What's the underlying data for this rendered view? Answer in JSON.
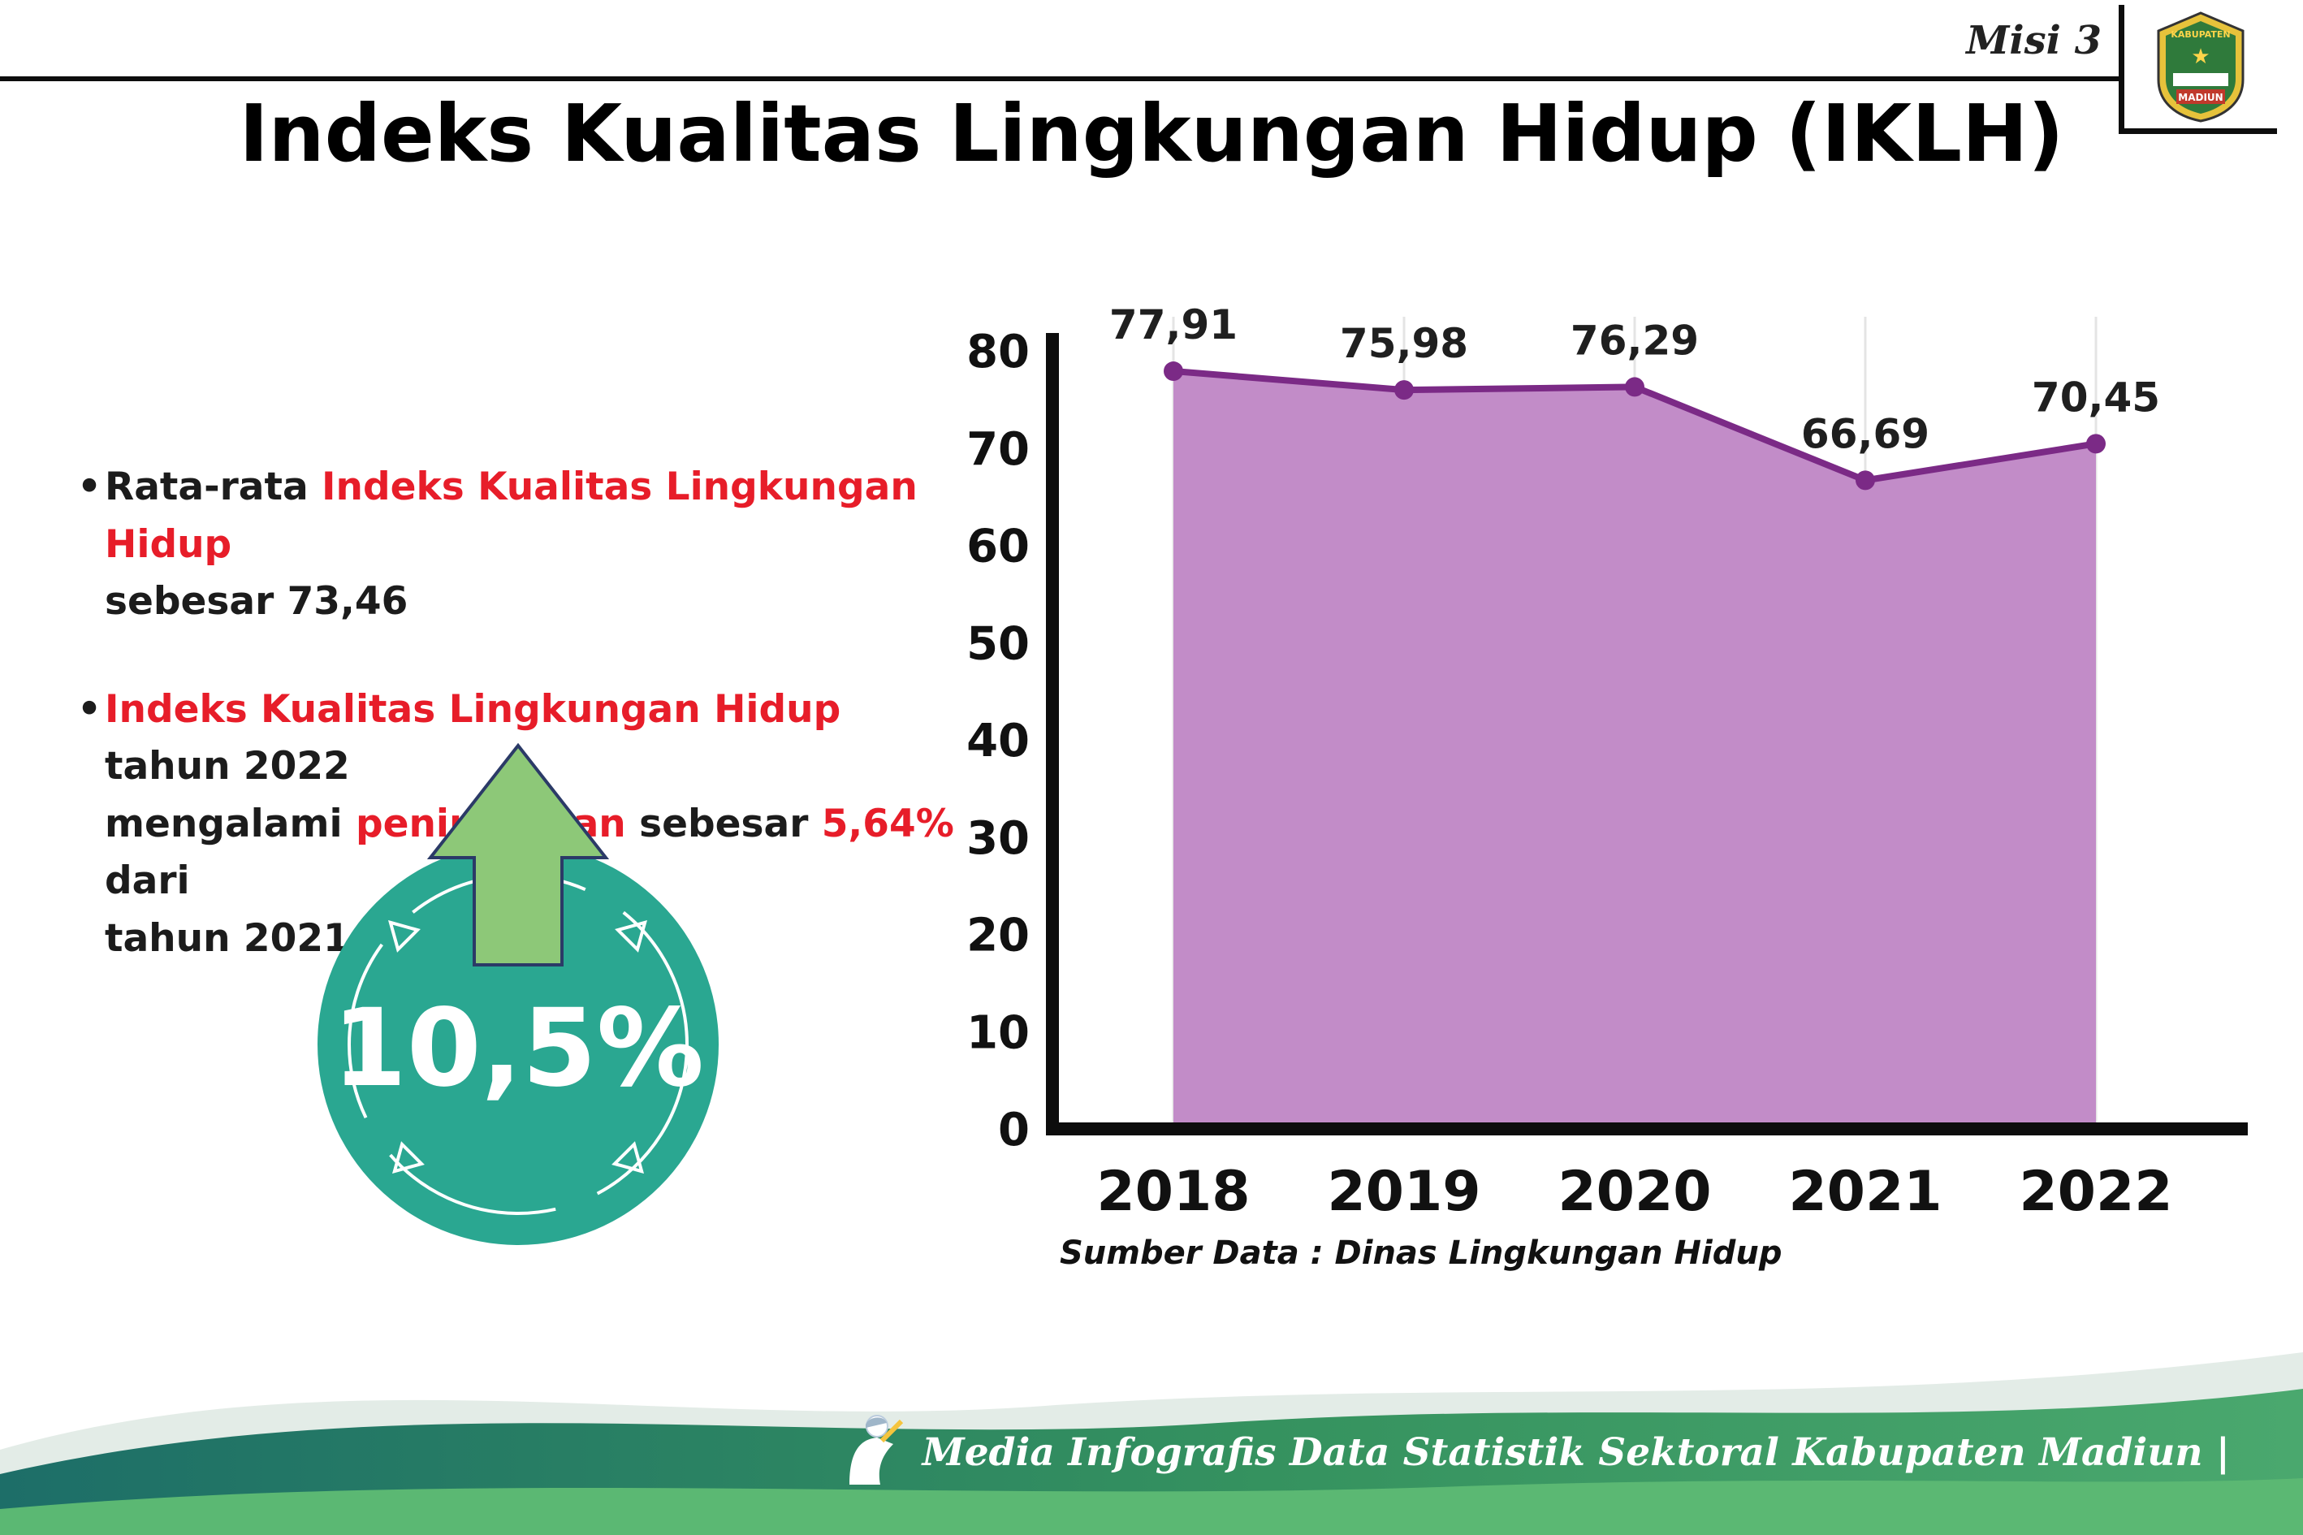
{
  "header": {
    "misi_label": "Misi 3",
    "title": "Indeks Kualitas Lingkungan Hidup (IKLH)"
  },
  "logo": {
    "text_top": "KABUPATEN",
    "text_bottom": "MADIUN"
  },
  "bullet_glyph": "•",
  "bullets": [
    {
      "lines": [
        [
          {
            "t": "Rata-rata ",
            "red": false
          },
          {
            "t": "Indeks Kualitas Lingkungan Hidup",
            "red": true
          }
        ],
        [
          {
            "t": "sebesar 73,46",
            "red": false
          }
        ]
      ]
    },
    {
      "lines": [
        [
          {
            "t": "Indeks Kualitas Lingkungan Hidup",
            "red": true
          },
          {
            "t": " tahun 2022",
            "red": false
          }
        ],
        [
          {
            "t": "mengalami ",
            "red": false
          },
          {
            "t": "peningkatan",
            "red": true
          },
          {
            "t": " sebesar ",
            "red": false
          },
          {
            "t": "5,64%",
            "red": true
          },
          {
            "t": " dari",
            "red": false
          }
        ],
        [
          {
            "t": "tahun 2021",
            "red": false
          }
        ]
      ]
    }
  ],
  "badge": {
    "value": "10,5%",
    "circle_color": "#2aa791",
    "arrow_color": "#8dc878",
    "arrow_outline": "#2b3a67"
  },
  "chart_data": {
    "type": "area",
    "categories": [
      "2018",
      "2019",
      "2020",
      "2021",
      "2022"
    ],
    "values": [
      77.91,
      75.98,
      76.29,
      66.69,
      70.45
    ],
    "value_labels": [
      "77,91",
      "75,98",
      "76,29",
      "66,69",
      "70,45"
    ],
    "title": "",
    "xlabel": "",
    "ylabel": "",
    "ylim": [
      0,
      80
    ],
    "yticks": [
      0,
      10,
      20,
      30,
      40,
      50,
      60,
      70,
      80
    ],
    "grid": "vertical-light",
    "legend": "none",
    "fill_color": "#c28cc8",
    "line_color": "#7b2a86",
    "source": "Sumber Data : Dinas Lingkungan Hidup"
  },
  "footer": {
    "credit": "Media Infografis Data Statistik Sektoral Kabupaten Madiun |"
  }
}
